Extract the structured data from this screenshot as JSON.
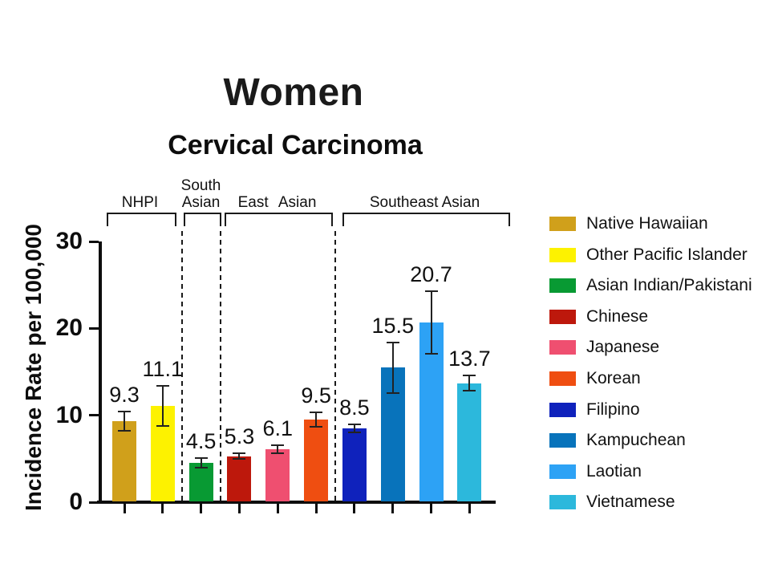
{
  "titles": {
    "main": "Women",
    "subtitle": "Cervical Carcinoma"
  },
  "chart_data": {
    "type": "bar",
    "title": "Cervical Carcinoma",
    "suptitle": "Women",
    "xlabel": "",
    "ylabel": "Incidence Rate per 100,000",
    "ylim": [
      0,
      30
    ],
    "yticks": [
      0,
      10,
      20,
      30
    ],
    "grid": false,
    "legend_position": "right",
    "error_bars": true,
    "bars": [
      {
        "category": "Native Hawaiian",
        "group": "NHPI",
        "value": 9.3,
        "value_label": "9.3",
        "error": 1.1,
        "color": "#D0A01B"
      },
      {
        "category": "Other Pacific Islander",
        "group": "NHPI",
        "value": 11.1,
        "value_label": "11.1",
        "error": 2.3,
        "color": "#FDF200"
      },
      {
        "category": "Asian Indian/Pakistani",
        "group": "South Asian",
        "value": 4.5,
        "value_label": "4.5",
        "error": 0.55,
        "color": "#089A33"
      },
      {
        "category": "Chinese",
        "group": "East Asian",
        "value": 5.3,
        "value_label": "5.3",
        "error": 0.35,
        "color": "#BD180C"
      },
      {
        "category": "Japanese",
        "group": "East Asian",
        "value": 6.1,
        "value_label": "6.1",
        "error": 0.5,
        "color": "#EF4F70"
      },
      {
        "category": "Korean",
        "group": "East Asian",
        "value": 9.5,
        "value_label": "9.5",
        "error": 0.8,
        "color": "#EF4E11"
      },
      {
        "category": "Filipino",
        "group": "Southeast Asian",
        "value": 8.5,
        "value_label": "8.5",
        "error": 0.45,
        "color": "#0F22BC"
      },
      {
        "category": "Kampuchean",
        "group": "Southeast Asian",
        "value": 15.5,
        "value_label": "15.5",
        "error": 2.9,
        "color": "#0873BB"
      },
      {
        "category": "Laotian",
        "group": "Southeast Asian",
        "value": 20.7,
        "value_label": "20.7",
        "error": 3.6,
        "color": "#2DA2F5"
      },
      {
        "category": "Vietnamese",
        "group": "Southeast Asian",
        "value": 13.7,
        "value_label": "13.7",
        "error": 0.9,
        "color": "#2CB8DC"
      }
    ],
    "groups": [
      {
        "label": "NHPI",
        "lines": [
          "NHPI"
        ],
        "bar_indices": [
          0,
          1
        ]
      },
      {
        "label": "South Asian",
        "lines": [
          "South",
          "Asian"
        ],
        "bar_indices": [
          2
        ]
      },
      {
        "label": "East Asian",
        "lines": [
          "East Asian"
        ],
        "bar_indices": [
          3,
          4,
          5
        ]
      },
      {
        "label": "Southeast Asian",
        "lines": [
          "Southeast Asian"
        ],
        "bar_indices": [
          6,
          7,
          8,
          9
        ]
      }
    ]
  }
}
